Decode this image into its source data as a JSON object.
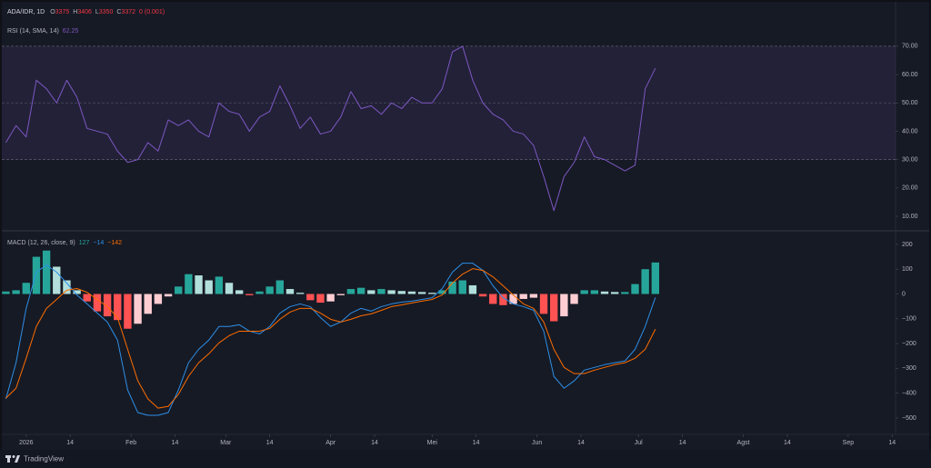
{
  "header": {
    "symbol": "ADA/IDR, 1D",
    "ohlc": [
      {
        "label": "O",
        "value": "3375"
      },
      {
        "label": "H",
        "value": "3406"
      },
      {
        "label": "L",
        "value": "3350"
      },
      {
        "label": "C",
        "value": "3372"
      }
    ],
    "change": "0 (0.001)"
  },
  "brand": "TradingView",
  "chart_data": [
    {
      "type": "line",
      "x": [
        -6,
        -3,
        0,
        3,
        6,
        9,
        12,
        15,
        18,
        21,
        24,
        27,
        30,
        33,
        36,
        39,
        42,
        45,
        48,
        51,
        54,
        57,
        60,
        63,
        66,
        69,
        72,
        75,
        78,
        81,
        84,
        87,
        90,
        93,
        96,
        99,
        102,
        105,
        108,
        111,
        114,
        117,
        120,
        123,
        126,
        129,
        132,
        135,
        138,
        141,
        144,
        147,
        150,
        153,
        156,
        159,
        162,
        165,
        168,
        171,
        174,
        177,
        180,
        183,
        186
      ],
      "xlim": [
        -7.2,
        257
      ],
      "ylim": [
        6.15,
        78.3
      ],
      "yticks": [
        {
          "value": 70,
          "label": "70.00"
        },
        {
          "value": 60,
          "label": "60.00"
        },
        {
          "value": 50,
          "label": "50.00"
        },
        {
          "value": 40,
          "label": "40.00"
        },
        {
          "value": 30,
          "label": "30.00"
        },
        {
          "value": 20,
          "label": "20.00"
        },
        {
          "value": 10,
          "label": "10.00"
        }
      ],
      "band": [
        30,
        70
      ],
      "band_color": "#7e57c2",
      "midline": 50,
      "series": [
        {
          "name": "RSI (14, SMA, 14)",
          "color": "#7e57c2",
          "legend_label": "62.25",
          "values": [
            36,
            42,
            38,
            58,
            55,
            50,
            58,
            52,
            41,
            40,
            39,
            33,
            29,
            30,
            36,
            33,
            44,
            42,
            44,
            40,
            38,
            50,
            47,
            46,
            40,
            45,
            47,
            56,
            49,
            41,
            45,
            39,
            40,
            45,
            54,
            48,
            49,
            46,
            50,
            48,
            52,
            50,
            50,
            55,
            68,
            70,
            58,
            50,
            46,
            44,
            40,
            39,
            35,
            24,
            12,
            24,
            29,
            38,
            31,
            30,
            28,
            26,
            28,
            55,
            62.25
          ]
        }
      ]
    },
    {
      "type": "macd",
      "title": "MACD (12, 26, close, 9)",
      "x": [
        -6,
        -3,
        0,
        3,
        6,
        9,
        12,
        15,
        18,
        21,
        24,
        27,
        30,
        33,
        36,
        39,
        42,
        45,
        48,
        51,
        54,
        57,
        60,
        63,
        66,
        69,
        72,
        75,
        78,
        81,
        84,
        87,
        90,
        93,
        96,
        99,
        102,
        105,
        108,
        111,
        114,
        117,
        120,
        123,
        126,
        129,
        132,
        135,
        138,
        141,
        144,
        147,
        150,
        153,
        156,
        159,
        162,
        165,
        168,
        171,
        174,
        177,
        180,
        183,
        186
      ],
      "xlim": [
        -7.2,
        257
      ],
      "ylim": [
        -566,
        240
      ],
      "yticks": [
        200,
        100,
        0,
        {
          "value": -100,
          "label": "−100"
        },
        {
          "value": -200,
          "label": "−200"
        },
        {
          "value": -300,
          "label": "−300"
        },
        {
          "value": -400,
          "label": "−400"
        },
        {
          "value": -500,
          "label": "−500"
        }
      ],
      "xticks": [
        {
          "value": 0,
          "label": "2026"
        },
        {
          "value": 13,
          "label": "14"
        },
        {
          "value": 31,
          "label": "Feb"
        },
        {
          "value": 44,
          "label": "14"
        },
        {
          "value": 59,
          "label": "Mar"
        },
        {
          "value": 72,
          "label": "14"
        },
        {
          "value": 90,
          "label": "Apr"
        },
        {
          "value": 103,
          "label": "14"
        },
        {
          "value": 120,
          "label": "Mei"
        },
        {
          "value": 133,
          "label": "14"
        },
        {
          "value": 151,
          "label": "Jun"
        },
        {
          "value": 164,
          "label": "14"
        },
        {
          "value": 181,
          "label": "Jul"
        },
        {
          "value": 194,
          "label": "14"
        },
        {
          "value": 212,
          "label": "Agst"
        },
        {
          "value": 225,
          "label": "14"
        },
        {
          "value": 243,
          "label": "Sep"
        },
        {
          "value": 256,
          "label": "14"
        }
      ],
      "series": [
        {
          "kind": "histogram",
          "legend_label": "127",
          "colors": {
            "grow_above": "#26a69a",
            "fall_above": "#b2dfdb",
            "grow_below": "#ffcdd2",
            "fall_below": "#ff5252"
          },
          "values": [
            10,
            15,
            45,
            150,
            175,
            110,
            55,
            15,
            -30,
            -70,
            -90,
            -105,
            -140,
            -120,
            -80,
            -40,
            -10,
            30,
            80,
            75,
            55,
            70,
            45,
            15,
            -5,
            10,
            30,
            55,
            20,
            5,
            -25,
            -35,
            -30,
            -5,
            20,
            25,
            15,
            20,
            15,
            12,
            10,
            8,
            5,
            15,
            50,
            55,
            35,
            -10,
            -40,
            -45,
            -40,
            -20,
            -15,
            -80,
            -110,
            -90,
            -40,
            15,
            15,
            10,
            8,
            8,
            40,
            100,
            127
          ]
        },
        {
          "kind": "line",
          "color": "#2e8fe6",
          "legend_label": "−14",
          "values": [
            -423,
            -277,
            -58,
            88,
            117,
            88,
            44,
            -4,
            -40,
            -77,
            -113,
            -186,
            -387,
            -478,
            -489,
            -489,
            -478,
            -387,
            -277,
            -223,
            -186,
            -131,
            -131,
            -124,
            -150,
            -161,
            -131,
            -77,
            -51,
            -40,
            -51,
            -95,
            -131,
            -113,
            -77,
            -58,
            -69,
            -51,
            -40,
            -33,
            -29,
            -22,
            -15,
            22,
            88,
            124,
            124,
            95,
            33,
            -15,
            -40,
            -51,
            -66,
            -150,
            -332,
            -380,
            -350,
            -307,
            -296,
            -285,
            -277,
            -270,
            -223,
            -131,
            -14
          ]
        },
        {
          "kind": "line",
          "color": "#ff6d00",
          "legend_label": "−142",
          "values": [
            -420,
            -380,
            -259,
            -131,
            -58,
            -22,
            15,
            22,
            7,
            -22,
            -51,
            -95,
            -223,
            -350,
            -423,
            -460,
            -453,
            -405,
            -332,
            -277,
            -241,
            -197,
            -168,
            -150,
            -150,
            -150,
            -139,
            -102,
            -73,
            -58,
            -58,
            -77,
            -102,
            -113,
            -102,
            -88,
            -80,
            -66,
            -51,
            -44,
            -36,
            -29,
            -22,
            -4,
            44,
            80,
            102,
            95,
            69,
            33,
            -4,
            -40,
            -58,
            -113,
            -223,
            -296,
            -321,
            -321,
            -307,
            -296,
            -285,
            -277,
            -259,
            -223,
            -142
          ]
        }
      ]
    }
  ]
}
